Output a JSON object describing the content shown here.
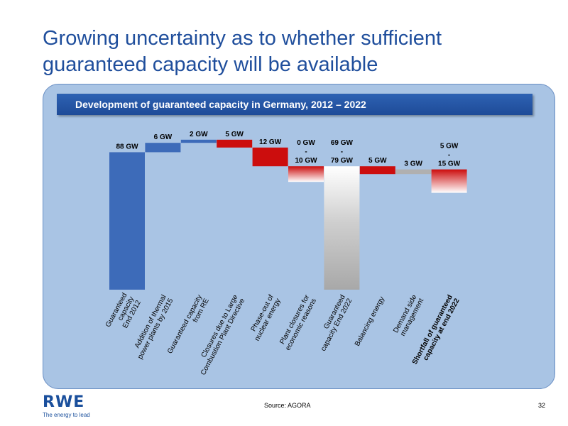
{
  "slide": {
    "title": "Growing uncertainty as to whether sufficient guaranteed capacity will be available",
    "source": "Source: AGORA",
    "page_number": "32",
    "logo_text": "RWE",
    "logo_tagline": "The energy to lead"
  },
  "colors": {
    "blue": "#3d6bb9",
    "red": "#cc0d0d",
    "gray": "#b0b0b0",
    "panel": "#a9c4e4",
    "header": "#1e4b98",
    "title": "#1f4e9c"
  },
  "chart_data": {
    "type": "bar",
    "subtype": "waterfall",
    "title": "Development of guaranteed capacity in Germany, 2012 – 2022",
    "unit": "GW",
    "categories": [
      "Guaranteed capacity End 2012",
      "Addition of thermal power plants by 2015",
      "Guaranteed capacity from RE",
      "Closures due to Large Combustion Plant Directive",
      "Phase-out of nuclear energy",
      "Plant closures for economic reasons",
      "Guaranteed capacity End 2022",
      "Balancing energy",
      "Demand side management",
      "Shortfall of guaranteed capacity at end 2022"
    ],
    "category_lines": [
      [
        "Guaranteed",
        "capacity",
        "End 2012"
      ],
      [
        "Addition of thermal",
        "power plants by 2015"
      ],
      [
        "Guaranteed capacity",
        "from RE"
      ],
      [
        "Closures due to Large",
        "Combustion Plant Directive"
      ],
      [
        "Phase-out of",
        "nuclear energy"
      ],
      [
        "Plant closures for",
        "economic reasons"
      ],
      [
        "Guaranteed",
        "capacity End 2022"
      ],
      [
        "Balancing energy"
      ],
      [
        "Demand side",
        "management"
      ],
      [
        "Shortfall of guaranteed",
        "capacity at end 2022"
      ]
    ],
    "bars": [
      {
        "kind": "total",
        "base": 0,
        "top": 88,
        "color": "blue",
        "label": [
          "88 GW"
        ]
      },
      {
        "kind": "increase",
        "base": 88,
        "top": 94,
        "color": "blue",
        "label": [
          "6 GW"
        ]
      },
      {
        "kind": "increase",
        "base": 94,
        "top": 96,
        "color": "blue",
        "label": [
          "2 GW"
        ]
      },
      {
        "kind": "decrease",
        "base": 91,
        "top": 96,
        "color": "red",
        "label": [
          "5 GW"
        ]
      },
      {
        "kind": "decrease",
        "base": 79,
        "top": 91,
        "color": "red",
        "label": [
          "12 GW"
        ]
      },
      {
        "kind": "decrease-range",
        "base": 69,
        "top": 79,
        "color": "red-fade",
        "label": [
          "0 GW",
          "-",
          "10 GW"
        ]
      },
      {
        "kind": "total-range",
        "base": 0,
        "top": 79,
        "color": "gray-fade",
        "label": [
          "69 GW",
          "-",
          "79 GW"
        ]
      },
      {
        "kind": "decrease",
        "base": 74,
        "top": 79,
        "color": "red",
        "label": [
          "5 GW"
        ]
      },
      {
        "kind": "increase",
        "base": 74,
        "top": 77,
        "color": "gray",
        "label": [
          "3 GW"
        ]
      },
      {
        "kind": "shortfall-range",
        "base": 62,
        "top": 77,
        "color": "red-fade",
        "label": [
          "5 GW",
          "-",
          "15 GW"
        ]
      }
    ],
    "highlighted_category_index": 9
  }
}
